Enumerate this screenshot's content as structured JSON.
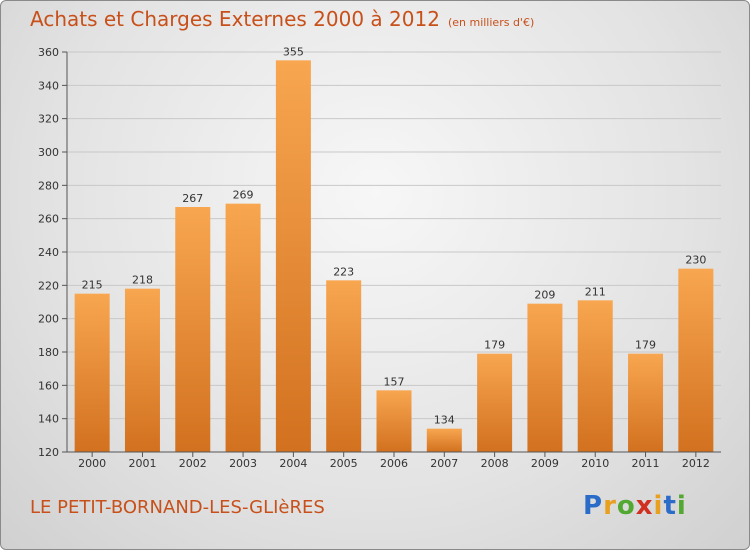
{
  "header": {
    "title": "Achats et Charges Externes 2000 à 2012",
    "subtitle": "(en milliers d'€)"
  },
  "footer": {
    "commune": "LE PETIT-BORNAND-LES-GLIèRES",
    "logo_letters": [
      "P",
      "r",
      "o",
      "x",
      "i",
      "t",
      "i"
    ],
    "logo_colors": [
      "#2a6cc8",
      "#e8a020",
      "#52a830",
      "#d03020",
      "#e8a020",
      "#2a6cc8",
      "#52a830"
    ]
  },
  "chart_data": {
    "type": "bar",
    "categories": [
      "2000",
      "2001",
      "2002",
      "2003",
      "2004",
      "2005",
      "2006",
      "2007",
      "2008",
      "2009",
      "2010",
      "2011",
      "2012"
    ],
    "values": [
      215,
      218,
      267,
      269,
      355,
      223,
      157,
      134,
      179,
      209,
      211,
      179,
      230
    ],
    "title": "Achats et Charges Externes 2000 à 2012",
    "xlabel": "",
    "ylabel": "",
    "ylim": [
      120,
      360
    ],
    "yticks": [
      120,
      140,
      160,
      180,
      200,
      220,
      240,
      260,
      280,
      300,
      320,
      340,
      360
    ],
    "grid": true,
    "colors": {
      "bar_top": "#f8a650",
      "bar_bottom": "#d2711f",
      "axis_text": "#333333",
      "label_text": "#333333",
      "grid": "#c8c8c8"
    }
  }
}
